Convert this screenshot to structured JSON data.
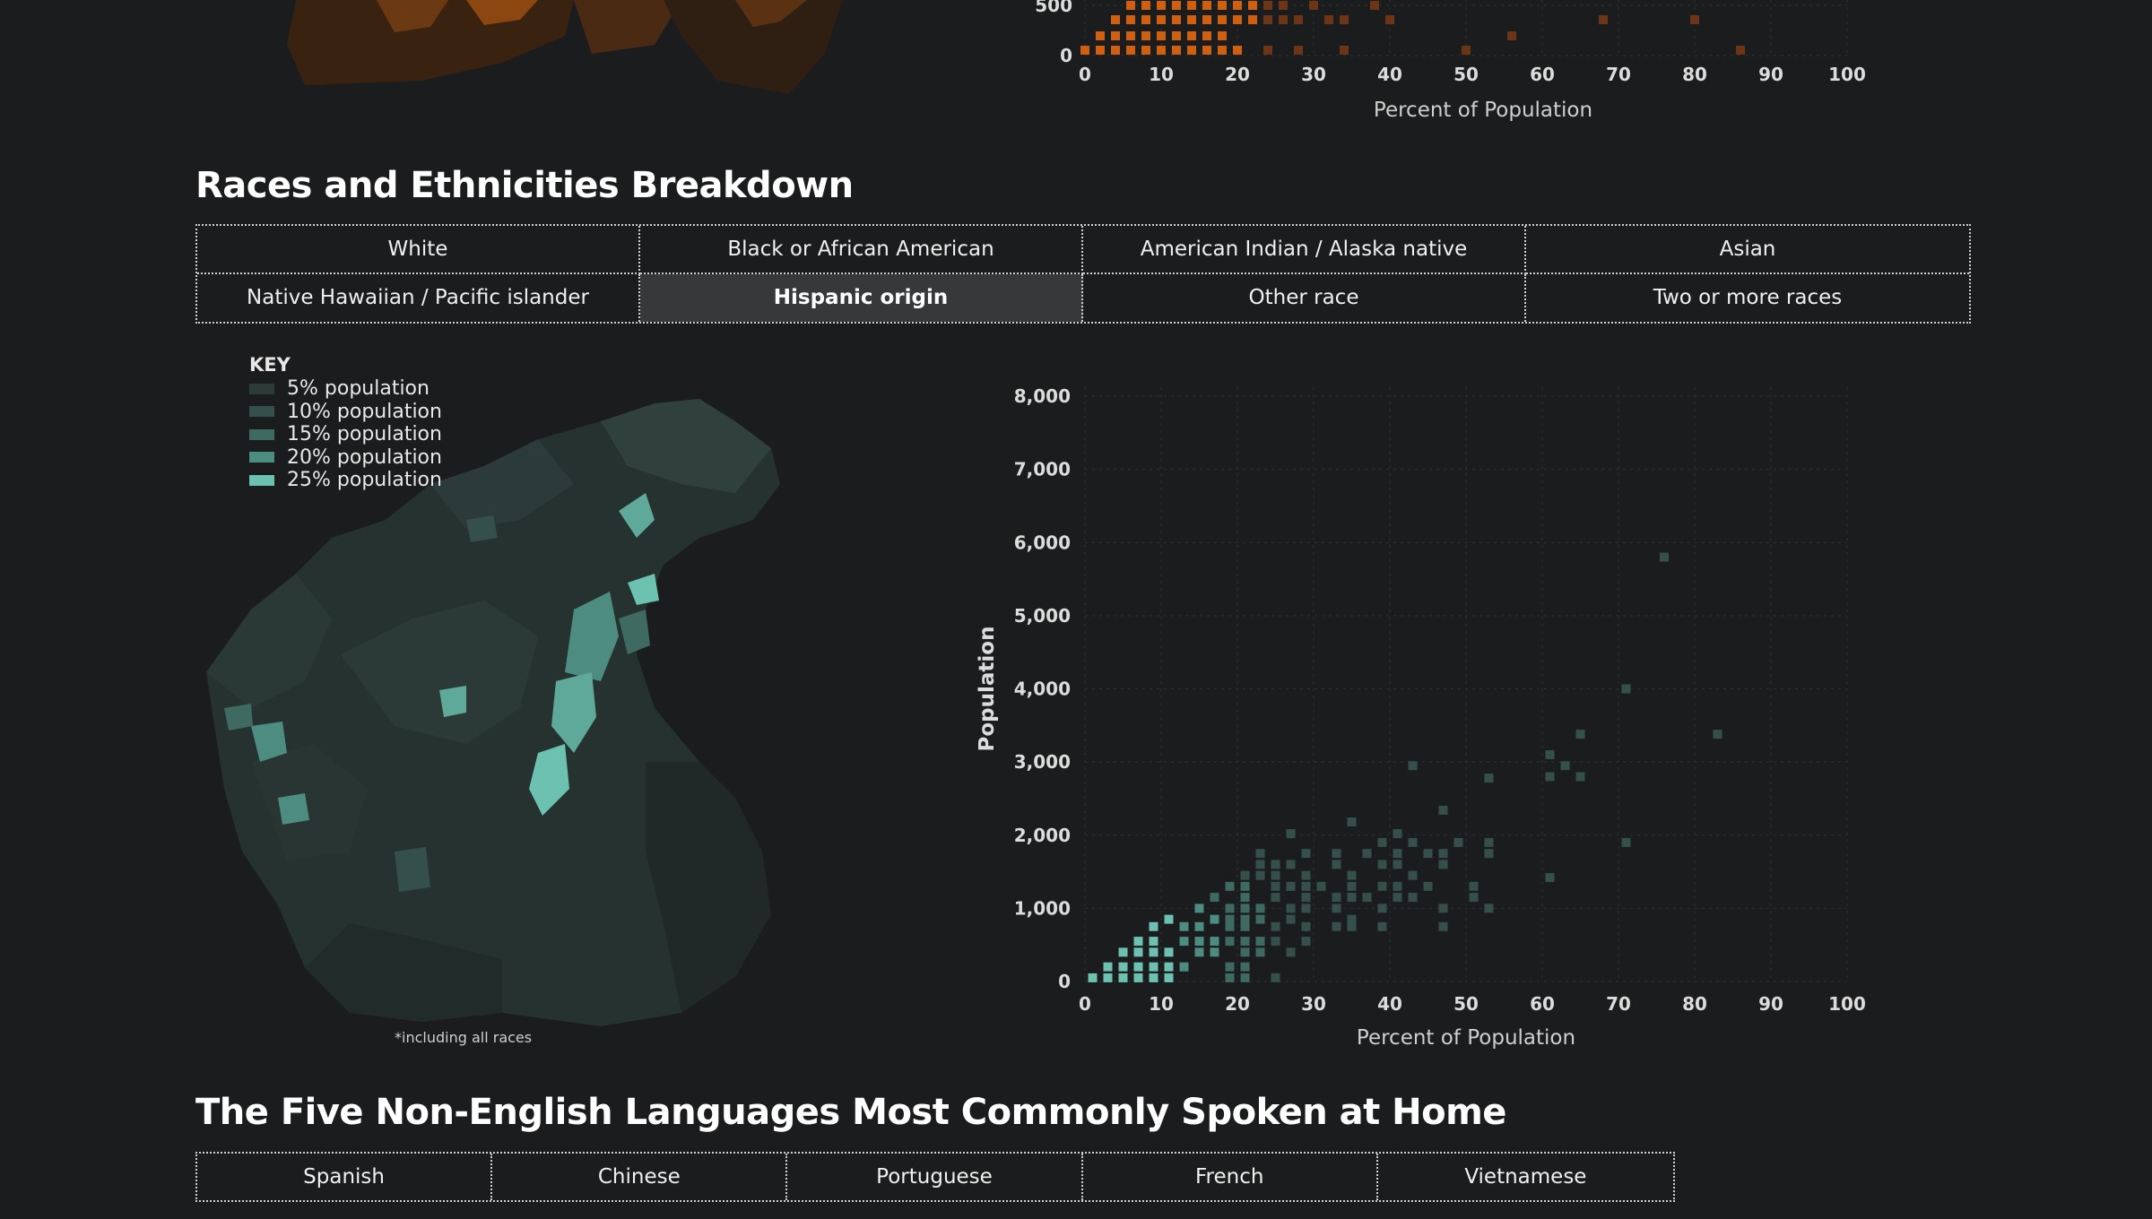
{
  "top_chart": {
    "xlabel": "Percent of Population",
    "ytick_labels": [
      "0",
      "500"
    ],
    "xtick_labels": [
      "0",
      "10",
      "20",
      "30",
      "40",
      "50",
      "60",
      "70",
      "80",
      "90",
      "100"
    ],
    "color": "#d0600f"
  },
  "races": {
    "title": "Races and Ethnicities Breakdown",
    "tabs": [
      {
        "label": "White",
        "active": false
      },
      {
        "label": "Black or African American",
        "active": false
      },
      {
        "label": "American Indian / Alaska native",
        "active": false
      },
      {
        "label": "Asian",
        "active": false
      },
      {
        "label": "Native Hawaiian / Pacific islander",
        "active": false
      },
      {
        "label": "Hispanic origin",
        "active": true
      },
      {
        "label": "Other race",
        "active": false
      },
      {
        "label": "Two or more races",
        "active": false
      }
    ],
    "key": {
      "title": "KEY",
      "items": [
        {
          "label": "5% population",
          "color": "#2c3a38"
        },
        {
          "label": "10% population",
          "color": "#35504b"
        },
        {
          "label": "15% population",
          "color": "#3f6a62"
        },
        {
          "label": "20% population",
          "color": "#4d8c80"
        },
        {
          "label": "25% population",
          "color": "#6cc1b0"
        }
      ]
    },
    "map_note": "*including all races",
    "accent_color": "#6cc1b0"
  },
  "chart_data": {
    "type": "scatter",
    "title": "",
    "xlabel": "Percent of Population",
    "ylabel": "Population",
    "xlim": [
      0,
      100
    ],
    "ylim": [
      0,
      8000
    ],
    "xtick_labels": [
      "0",
      "10",
      "20",
      "30",
      "40",
      "50",
      "60",
      "70",
      "80",
      "90",
      "100"
    ],
    "ytick_labels": [
      "0",
      "1,000",
      "2,000",
      "3,000",
      "4,000",
      "5,000",
      "6,000",
      "7,000",
      "8,000"
    ],
    "grid": true,
    "points": [
      [
        1,
        50
      ],
      [
        3,
        50
      ],
      [
        5,
        50
      ],
      [
        7,
        50
      ],
      [
        9,
        50
      ],
      [
        11,
        50
      ],
      [
        19,
        50
      ],
      [
        21,
        50
      ],
      [
        25,
        50
      ],
      [
        3,
        200
      ],
      [
        5,
        200
      ],
      [
        7,
        200
      ],
      [
        9,
        200
      ],
      [
        11,
        200
      ],
      [
        13,
        200
      ],
      [
        19,
        200
      ],
      [
        21,
        200
      ],
      [
        5,
        400
      ],
      [
        7,
        400
      ],
      [
        9,
        400
      ],
      [
        11,
        400
      ],
      [
        15,
        400
      ],
      [
        17,
        400
      ],
      [
        21,
        400
      ],
      [
        23,
        400
      ],
      [
        27,
        400
      ],
      [
        7,
        550
      ],
      [
        9,
        550
      ],
      [
        13,
        550
      ],
      [
        15,
        550
      ],
      [
        17,
        550
      ],
      [
        19,
        550
      ],
      [
        21,
        550
      ],
      [
        23,
        550
      ],
      [
        25,
        550
      ],
      [
        29,
        550
      ],
      [
        9,
        750
      ],
      [
        13,
        750
      ],
      [
        15,
        750
      ],
      [
        19,
        750
      ],
      [
        21,
        750
      ],
      [
        25,
        750
      ],
      [
        29,
        750
      ],
      [
        33,
        750
      ],
      [
        35,
        750
      ],
      [
        39,
        750
      ],
      [
        47,
        750
      ],
      [
        11,
        850
      ],
      [
        17,
        850
      ],
      [
        19,
        850
      ],
      [
        21,
        850
      ],
      [
        23,
        850
      ],
      [
        27,
        850
      ],
      [
        35,
        850
      ],
      [
        15,
        1000
      ],
      [
        19,
        1000
      ],
      [
        21,
        1000
      ],
      [
        23,
        1000
      ],
      [
        27,
        1000
      ],
      [
        29,
        1000
      ],
      [
        33,
        1000
      ],
      [
        39,
        1000
      ],
      [
        47,
        1000
      ],
      [
        53,
        1000
      ],
      [
        17,
        1150
      ],
      [
        21,
        1150
      ],
      [
        25,
        1150
      ],
      [
        29,
        1150
      ],
      [
        33,
        1150
      ],
      [
        35,
        1150
      ],
      [
        37,
        1150
      ],
      [
        41,
        1150
      ],
      [
        43,
        1150
      ],
      [
        51,
        1150
      ],
      [
        19,
        1300
      ],
      [
        21,
        1300
      ],
      [
        25,
        1300
      ],
      [
        27,
        1300
      ],
      [
        29,
        1300
      ],
      [
        31,
        1300
      ],
      [
        35,
        1300
      ],
      [
        39,
        1300
      ],
      [
        41,
        1300
      ],
      [
        45,
        1300
      ],
      [
        51,
        1300
      ],
      [
        21,
        1450
      ],
      [
        23,
        1450
      ],
      [
        25,
        1450
      ],
      [
        29,
        1450
      ],
      [
        35,
        1450
      ],
      [
        43,
        1450
      ],
      [
        61,
        1420
      ],
      [
        23,
        1600
      ],
      [
        25,
        1600
      ],
      [
        27,
        1600
      ],
      [
        33,
        1600
      ],
      [
        39,
        1600
      ],
      [
        41,
        1600
      ],
      [
        47,
        1600
      ],
      [
        23,
        1750
      ],
      [
        29,
        1750
      ],
      [
        33,
        1750
      ],
      [
        37,
        1750
      ],
      [
        41,
        1750
      ],
      [
        45,
        1750
      ],
      [
        47,
        1750
      ],
      [
        53,
        1750
      ],
      [
        39,
        1900
      ],
      [
        43,
        1900
      ],
      [
        49,
        1900
      ],
      [
        53,
        1900
      ],
      [
        71,
        1900
      ],
      [
        27,
        2020
      ],
      [
        41,
        2020
      ],
      [
        35,
        2180
      ],
      [
        47,
        2340
      ],
      [
        53,
        2780
      ],
      [
        61,
        2800
      ],
      [
        65,
        2800
      ],
      [
        43,
        2950
      ],
      [
        63,
        2950
      ],
      [
        61,
        3100
      ],
      [
        65,
        3380
      ],
      [
        83,
        3380
      ],
      [
        71,
        4000
      ],
      [
        76,
        5800
      ]
    ]
  },
  "languages": {
    "title": "The Five Non-English Languages Most Commonly Spoken at Home",
    "tabs": [
      "Spanish",
      "Chinese",
      "Portuguese",
      "French",
      "Vietnamese"
    ]
  }
}
